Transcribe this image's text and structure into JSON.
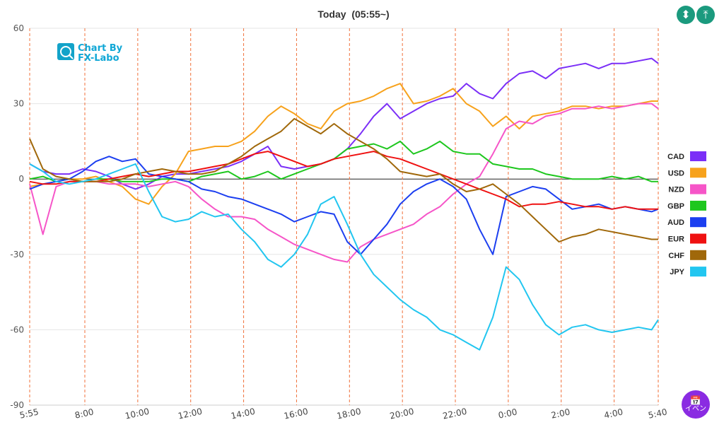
{
  "chart_data": {
    "type": "line",
    "title": "Today  (05:55~)",
    "ylim": [
      -90,
      60
    ],
    "yticks": [
      60,
      30,
      0,
      -30,
      -60,
      -90
    ],
    "xticks": [
      {
        "t": 0,
        "label": "5:55"
      },
      {
        "t": 125,
        "label": "8:00"
      },
      {
        "t": 245,
        "label": "10:00"
      },
      {
        "t": 365,
        "label": "12:00"
      },
      {
        "t": 485,
        "label": "14:00"
      },
      {
        "t": 605,
        "label": "16:00"
      },
      {
        "t": 725,
        "label": "18:00"
      },
      {
        "t": 845,
        "label": "20:00"
      },
      {
        "t": 965,
        "label": "22:00"
      },
      {
        "t": 1085,
        "label": "0:00"
      },
      {
        "t": 1205,
        "label": "2:00"
      },
      {
        "t": 1325,
        "label": "4:00"
      },
      {
        "t": 1425,
        "label": "5:40"
      }
    ],
    "x_minutes_from": "5:55",
    "x_max": 1425,
    "grid": "vertical dashed at tick times",
    "legend_position": "right",
    "x": [
      0,
      30,
      60,
      90,
      120,
      150,
      180,
      210,
      240,
      270,
      300,
      330,
      360,
      390,
      420,
      450,
      480,
      510,
      540,
      570,
      600,
      630,
      660,
      690,
      720,
      750,
      780,
      810,
      840,
      870,
      900,
      930,
      960,
      990,
      1020,
      1050,
      1080,
      1110,
      1140,
      1170,
      1200,
      1230,
      1260,
      1290,
      1320,
      1350,
      1380,
      1410,
      1425
    ],
    "series": [
      {
        "name": "CAD",
        "color": "#7b2ff7",
        "values": [
          6,
          3,
          2,
          2,
          4,
          3,
          1,
          -2,
          -4,
          -2,
          1,
          2,
          2,
          3,
          4,
          5,
          7,
          10,
          13,
          5,
          4,
          5,
          6,
          8,
          12,
          18,
          25,
          30,
          24,
          27,
          30,
          32,
          33,
          38,
          34,
          32,
          38,
          42,
          43,
          40,
          44,
          45,
          46,
          44,
          46,
          46,
          47,
          48,
          46
        ]
      },
      {
        "name": "USD",
        "color": "#f7a21c",
        "values": [
          -3,
          -2,
          -1,
          0,
          0,
          1,
          -1,
          -3,
          -8,
          -10,
          -3,
          2,
          11,
          12,
          13,
          13,
          15,
          19,
          25,
          29,
          26,
          22,
          20,
          27,
          30,
          31,
          33,
          36,
          38,
          30,
          31,
          33,
          36,
          30,
          27,
          21,
          25,
          20,
          25,
          26,
          27,
          29,
          29,
          28,
          29,
          29,
          30,
          31,
          31
        ]
      },
      {
        "name": "NZD",
        "color": "#f655c8",
        "values": [
          -2,
          -22,
          -3,
          -1,
          -1,
          -1,
          -2,
          -2,
          -2,
          -3,
          -2,
          -1,
          -3,
          -8,
          -12,
          -15,
          -15,
          -16,
          -20,
          -23,
          -26,
          -28,
          -30,
          -32,
          -33,
          -27,
          -24,
          -22,
          -20,
          -18,
          -14,
          -11,
          -6,
          -2,
          1,
          10,
          20,
          23,
          22,
          25,
          26,
          28,
          28,
          29,
          28,
          29,
          30,
          30,
          28
        ]
      },
      {
        "name": "GBP",
        "color": "#1ec71e",
        "values": [
          0,
          1,
          -1,
          0,
          -1,
          0,
          0,
          -1,
          -1,
          -1,
          0,
          0,
          -1,
          1,
          2,
          3,
          0,
          1,
          3,
          0,
          2,
          4,
          6,
          8,
          12,
          13,
          14,
          12,
          15,
          10,
          12,
          15,
          11,
          10,
          10,
          6,
          5,
          4,
          4,
          2,
          1,
          0,
          0,
          0,
          1,
          0,
          1,
          -1,
          -1
        ]
      },
      {
        "name": "AUD",
        "color": "#1c3ff0",
        "values": [
          -4,
          -2,
          -1,
          0,
          3,
          7,
          9,
          7,
          8,
          2,
          1,
          0,
          -1,
          -4,
          -5,
          -7,
          -8,
          -10,
          -12,
          -14,
          -17,
          -15,
          -13,
          -14,
          -25,
          -30,
          -24,
          -18,
          -10,
          -5,
          -2,
          0,
          -3,
          -8,
          -20,
          -30,
          -7,
          -5,
          -3,
          -4,
          -8,
          -12,
          -11,
          -10,
          -12,
          -11,
          -12,
          -13,
          -12
        ]
      },
      {
        "name": "EUR",
        "color": "#ef1111",
        "values": [
          -1,
          -2,
          -2,
          -1,
          -1,
          -1,
          0,
          1,
          2,
          1,
          2,
          3,
          3,
          4,
          5,
          6,
          8,
          10,
          11,
          9,
          7,
          5,
          6,
          8,
          9,
          10,
          11,
          9,
          8,
          6,
          4,
          2,
          0,
          -2,
          -4,
          -6,
          -8,
          -11,
          -10,
          -10,
          -9,
          -10,
          -11,
          -11,
          -12,
          -11,
          -12,
          -12,
          -12
        ]
      },
      {
        "name": "CHF",
        "color": "#a0680a",
        "values": [
          16,
          4,
          1,
          0,
          -1,
          -1,
          -1,
          0,
          2,
          3,
          4,
          3,
          2,
          2,
          3,
          6,
          9,
          13,
          16,
          19,
          24,
          21,
          18,
          22,
          18,
          15,
          12,
          8,
          3,
          2,
          1,
          2,
          -2,
          -5,
          -4,
          -2,
          -6,
          -10,
          -15,
          -20,
          -25,
          -23,
          -22,
          -20,
          -21,
          -22,
          -23,
          -24,
          -24
        ]
      },
      {
        "name": "JPY",
        "color": "#22c6f0",
        "values": [
          6,
          3,
          -1,
          -2,
          -1,
          0,
          2,
          4,
          6,
          -5,
          -15,
          -17,
          -16,
          -13,
          -15,
          -14,
          -20,
          -25,
          -32,
          -35,
          -30,
          -22,
          -10,
          -7,
          -18,
          -30,
          -38,
          -43,
          -48,
          -52,
          -55,
          -60,
          -62,
          -65,
          -68,
          -55,
          -35,
          -40,
          -50,
          -58,
          -62,
          -59,
          -58,
          -60,
          -61,
          -60,
          -59,
          -60,
          -56
        ]
      }
    ]
  },
  "logo": {
    "line1": "Chart By",
    "line2": "FX-Labo"
  },
  "buttons": {
    "expand_icon": "expand-vertical-icon",
    "fit_icon": "fit-vertical-icon",
    "events_label": "イベン",
    "events_icon": "calendar-icon"
  }
}
